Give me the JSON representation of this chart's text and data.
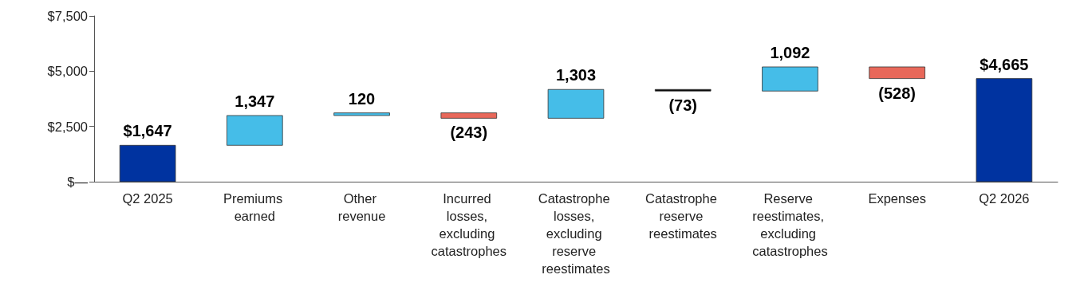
{
  "chart_data": {
    "type": "bar",
    "categories": [
      "Q2 2025",
      "Premiums earned",
      "Other revenue",
      "Incurred losses, excluding catastrophes",
      "Catastrophe losses, excluding reserve reestimates",
      "Catastrophe reserve reestimates",
      "Reserve reestimates, excluding catastrophes",
      "Expenses",
      "Q2 2026"
    ],
    "values": [
      1647,
      1347,
      120,
      -243,
      1303,
      -73,
      1092,
      -528,
      4665
    ],
    "base": [
      0,
      1647,
      2994,
      3114,
      2871,
      4174,
      4101,
      5193,
      0
    ],
    "colors": [
      "#0033a0",
      "#45bde8",
      "#45bde8",
      "#e8685a",
      "#45bde8",
      "#000000",
      "#45bde8",
      "#e8685a",
      "#0033a0"
    ],
    "value_labels": [
      "$1,647",
      "1,347",
      "120",
      "(243)",
      "1,303",
      "(73)",
      "1,092",
      "(528)",
      "$4,665"
    ],
    "ylim": [
      0,
      7500
    ],
    "yticks": [
      {
        "value": 0,
        "label": "$—"
      },
      {
        "value": 2500,
        "label": "$2,500"
      },
      {
        "value": 5000,
        "label": "$5,000"
      },
      {
        "value": 7500,
        "label": "$7,500"
      }
    ],
    "grid": false
  }
}
